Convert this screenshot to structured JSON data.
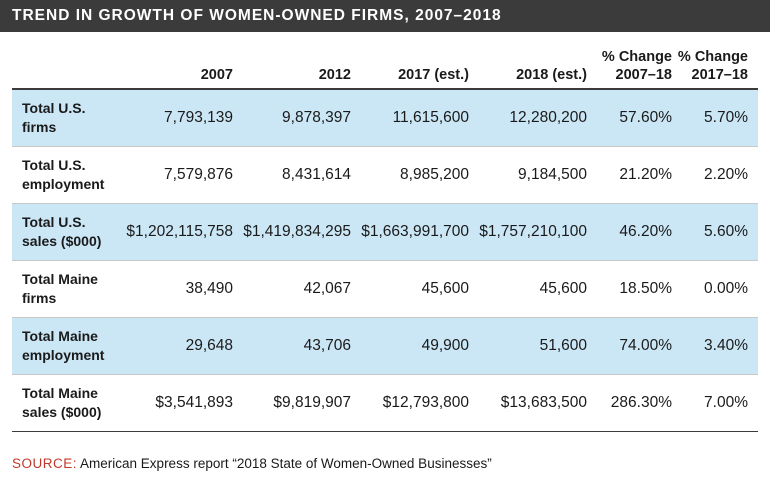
{
  "title": "TREND IN GROWTH OF WOMEN-OWNED FIRMS, 2007–2018",
  "chart_data": {
    "type": "table",
    "title": "TREND IN GROWTH OF WOMEN-OWNED FIRMS, 2007–2018",
    "columns": [
      {
        "line1": "",
        "line2": "2007"
      },
      {
        "line1": "",
        "line2": "2012"
      },
      {
        "line1": "",
        "line2": "2017 (est.)"
      },
      {
        "line1": "",
        "line2": "2018 (est.)"
      },
      {
        "line1": "% Change",
        "line2": "2007–18"
      },
      {
        "line1": "% Change",
        "line2": "2017–18"
      }
    ],
    "rows": [
      {
        "label_line1": "Total U.S.",
        "label_line2": "firms",
        "shaded": true,
        "values": [
          "7,793,139",
          "9,878,397",
          "11,615,600",
          "12,280,200",
          "57.60%",
          "5.70%"
        ]
      },
      {
        "label_line1": "Total U.S.",
        "label_line2": "employment",
        "shaded": false,
        "values": [
          "7,579,876",
          "8,431,614",
          "8,985,200",
          "9,184,500",
          "21.20%",
          "2.20%"
        ]
      },
      {
        "label_line1": "Total U.S.",
        "label_line2": "sales ($000)",
        "shaded": true,
        "values": [
          "$1,202,115,758",
          "$1,419,834,295",
          "$1,663,991,700",
          "$1,757,210,100",
          "46.20%",
          "5.60%"
        ]
      },
      {
        "label_line1": "Total Maine",
        "label_line2": "firms",
        "shaded": false,
        "values": [
          "38,490",
          "42,067",
          "45,600",
          "45,600",
          "18.50%",
          "0.00%"
        ]
      },
      {
        "label_line1": "Total Maine",
        "label_line2": "employment",
        "shaded": true,
        "values": [
          "29,648",
          "43,706",
          "49,900",
          "51,600",
          "74.00%",
          "3.40%"
        ]
      },
      {
        "label_line1": "Total Maine",
        "label_line2": "sales ($000)",
        "shaded": false,
        "values": [
          "$3,541,893",
          "$9,819,907",
          "$12,793,800",
          "$13,683,500",
          "286.30%",
          "7.00%"
        ]
      }
    ]
  },
  "source": {
    "key": "SOURCE:",
    "text": "American Express report “2018 State of Women-Owned Businesses”"
  },
  "colors": {
    "title_bar": "#3b3b3b",
    "row_shade": "#cbe7f6",
    "source_key": "#c0392b"
  }
}
